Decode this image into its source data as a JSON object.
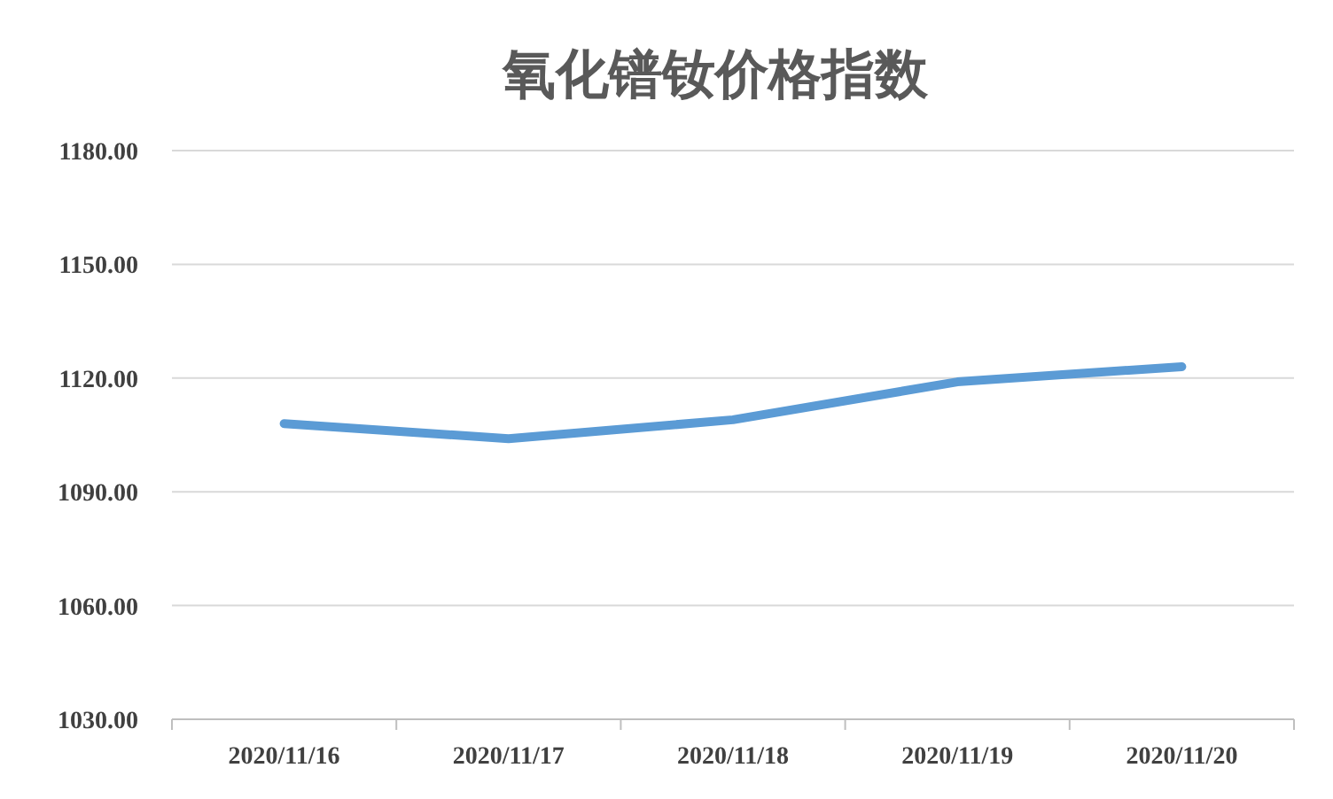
{
  "chart_data": {
    "type": "line",
    "title": "氧化镨钕价格指数",
    "categories": [
      "2020/11/16",
      "2020/11/17",
      "2020/11/18",
      "2020/11/19",
      "2020/11/20"
    ],
    "series": [
      {
        "color": "#5b9bd5",
        "values": [
          1108,
          1104,
          1109,
          1119,
          1123
        ]
      }
    ],
    "ylim": [
      1030,
      1180
    ],
    "yticks": [
      {
        "value": 1030,
        "label": "1030.00"
      },
      {
        "value": 1060,
        "label": "1060.00"
      },
      {
        "value": 1090,
        "label": "1090.00"
      },
      {
        "value": 1120,
        "label": "1120.00"
      },
      {
        "value": 1150,
        "label": "1150.00"
      },
      {
        "value": 1180,
        "label": "1180.00"
      }
    ],
    "grid": "y",
    "marker": "none",
    "line_style": "solid"
  }
}
